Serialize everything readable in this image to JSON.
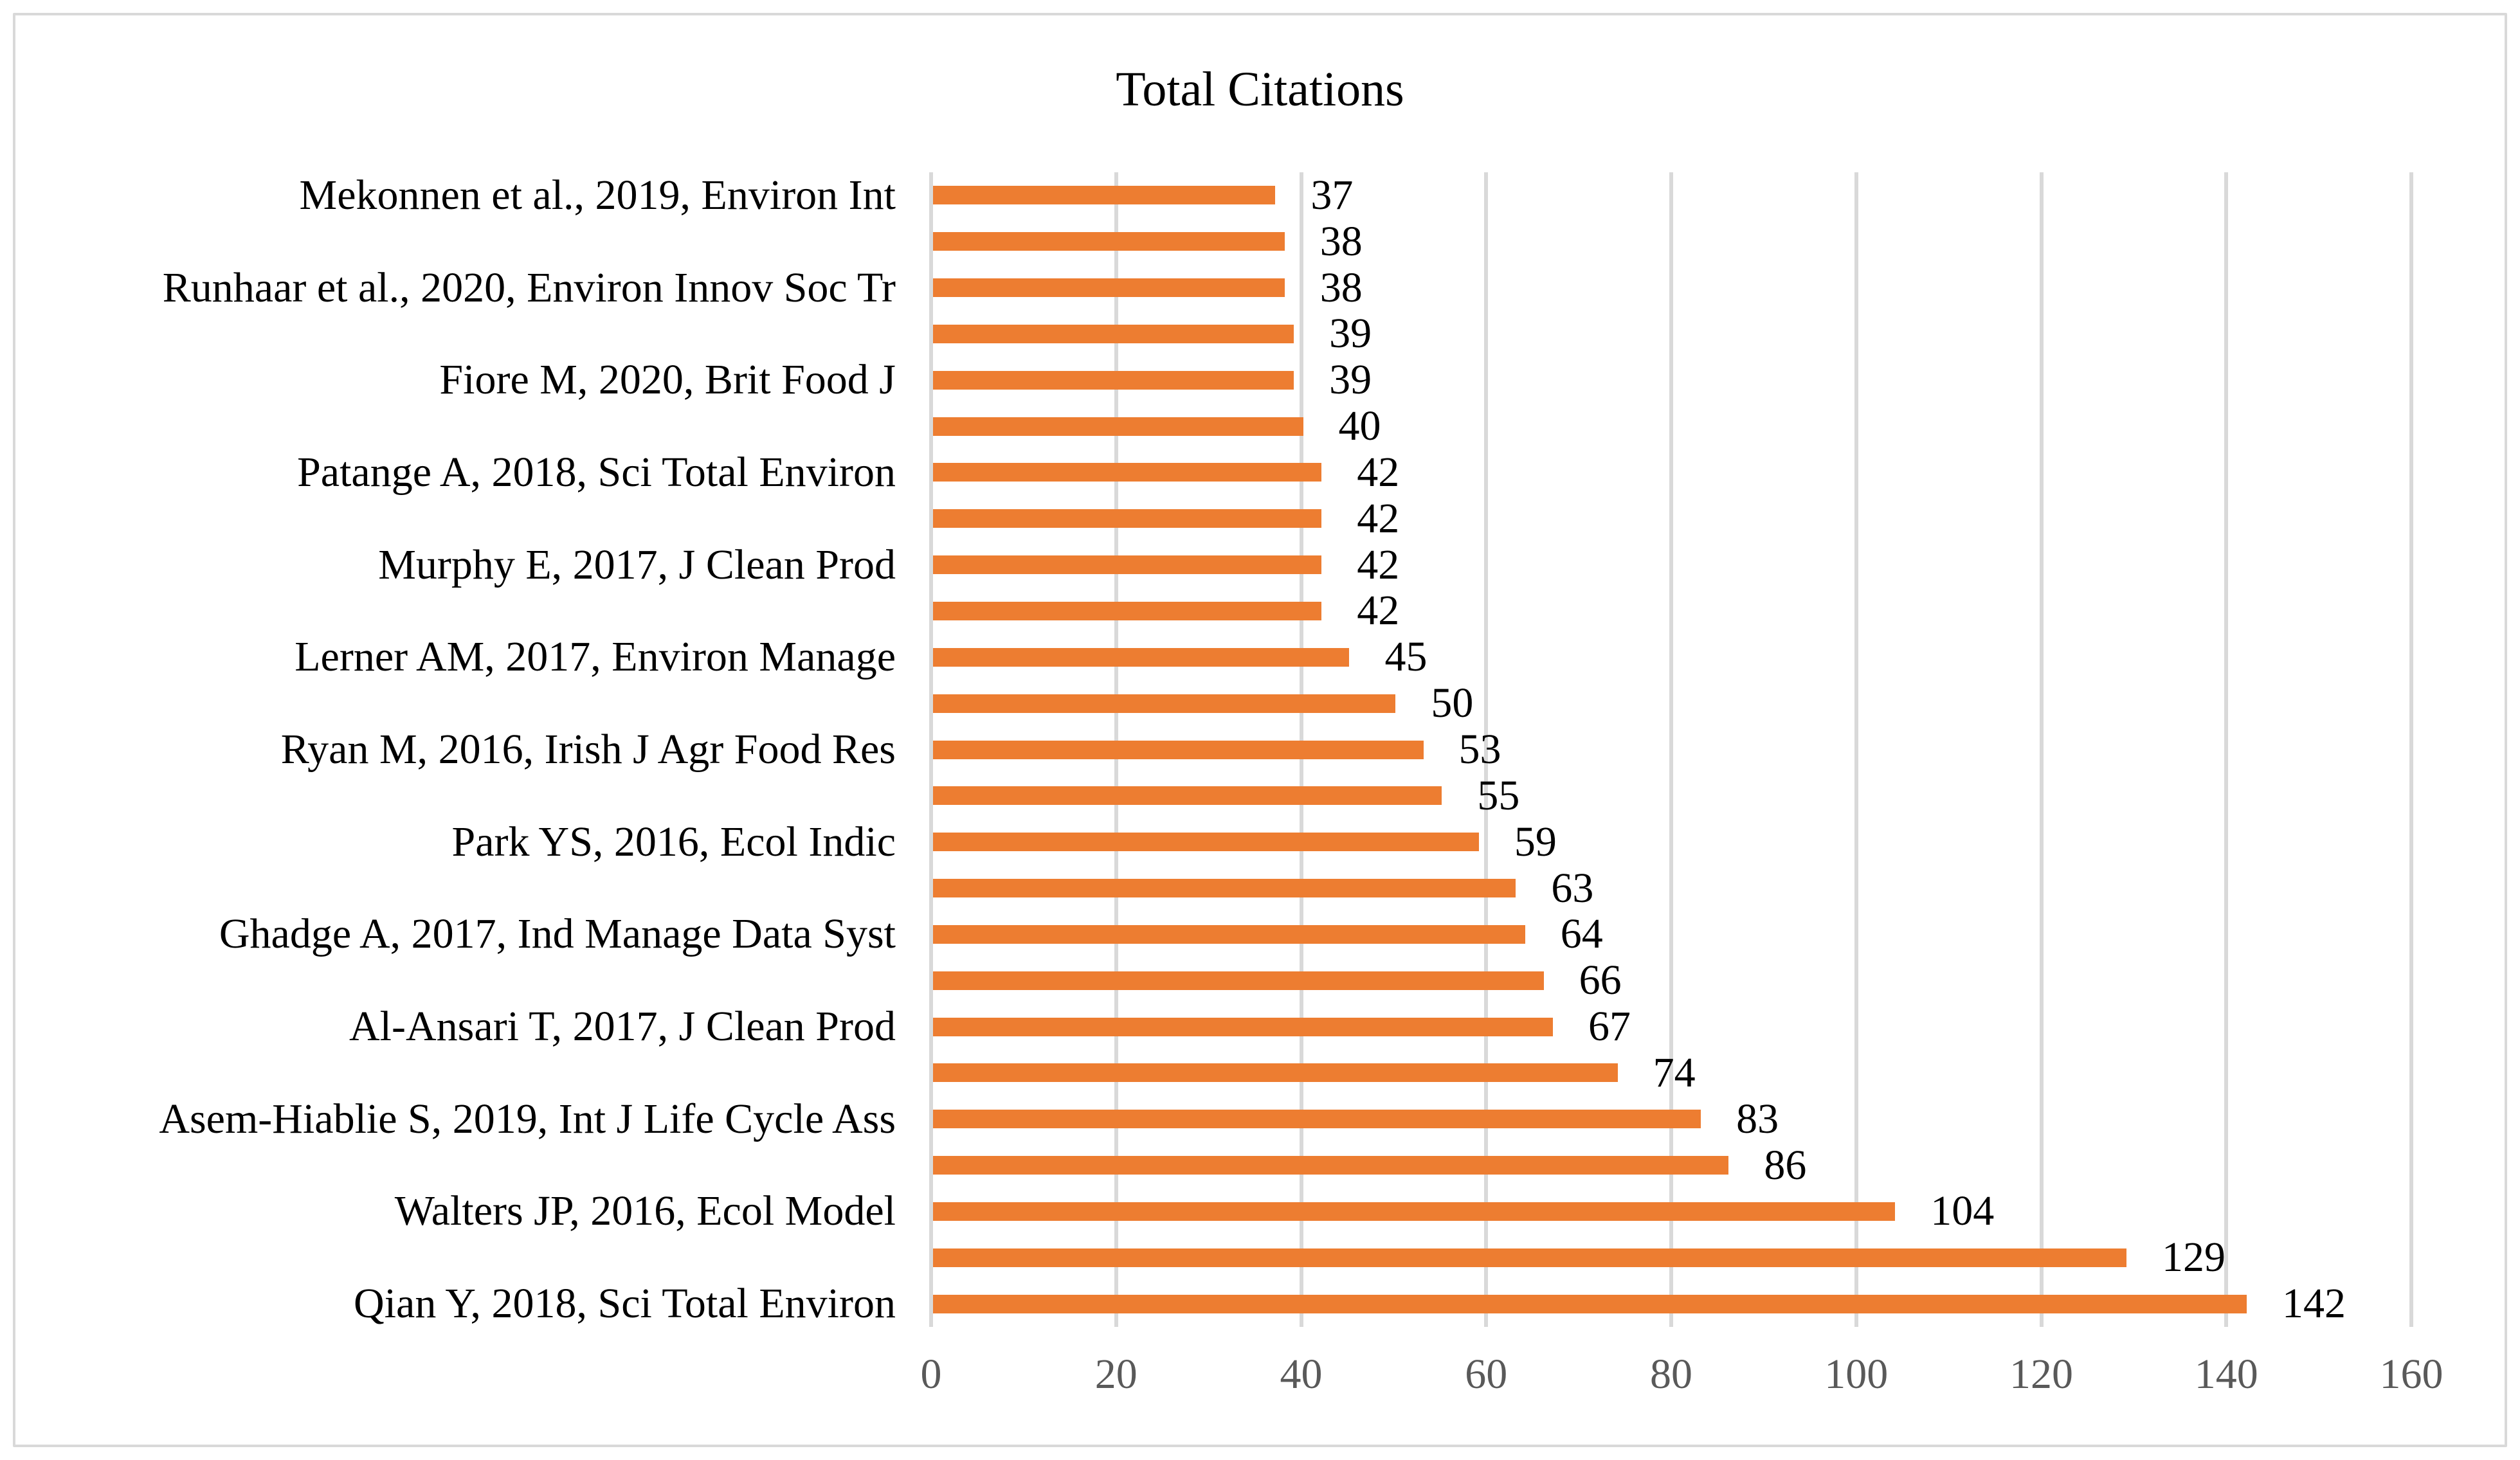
{
  "chart_data": {
    "type": "bar",
    "orientation": "horizontal",
    "title": "Total Citations",
    "x_axis": {
      "min": 0,
      "max": 160,
      "step": 20,
      "tick_labels": [
        "0",
        "20",
        "40",
        "60",
        "80",
        "100",
        "120",
        "140",
        "160"
      ]
    },
    "grid": true,
    "legend": "none",
    "value_labels_visible": true,
    "category_axis_note": "only every second bar carries a visible category label",
    "rows": [
      {
        "label": "Mekonnen et al., 2019, Environ Int",
        "value": 37
      },
      {
        "label": "",
        "value": 38
      },
      {
        "label": "Runhaar et al., 2020, Environ Innov Soc Tr",
        "value": 38
      },
      {
        "label": "",
        "value": 39
      },
      {
        "label": "Fiore M, 2020, Brit Food J",
        "value": 39
      },
      {
        "label": "",
        "value": 40
      },
      {
        "label": "Patange A, 2018, Sci Total Environ",
        "value": 42
      },
      {
        "label": "",
        "value": 42
      },
      {
        "label": "Murphy E, 2017, J Clean Prod",
        "value": 42
      },
      {
        "label": "",
        "value": 42
      },
      {
        "label": "Lerner AM, 2017, Environ Manage",
        "value": 45
      },
      {
        "label": "",
        "value": 50
      },
      {
        "label": "Ryan M, 2016, Irish J Agr Food Res",
        "value": 53
      },
      {
        "label": "",
        "value": 55
      },
      {
        "label": "Park YS, 2016, Ecol Indic",
        "value": 59
      },
      {
        "label": "",
        "value": 63
      },
      {
        "label": "Ghadge A, 2017, Ind Manage Data Syst",
        "value": 64
      },
      {
        "label": "",
        "value": 66
      },
      {
        "label": "Al-Ansari T, 2017, J Clean Prod",
        "value": 67
      },
      {
        "label": "",
        "value": 74
      },
      {
        "label": "Asem-Hiablie S, 2019, Int J Life Cycle Ass",
        "value": 83
      },
      {
        "label": "",
        "value": 86
      },
      {
        "label": "Walters JP, 2016, Ecol Model",
        "value": 104
      },
      {
        "label": "",
        "value": 129
      },
      {
        "label": "Qian Y, 2018, Sci Total Environ",
        "value": 142
      }
    ],
    "colors": {
      "bar_fill": "#ED7D31",
      "gridline": "#D9D9D9",
      "axis_tick_text": "#595959",
      "text": "#000000",
      "background": "#FFFFFF",
      "frame_border": "#D9D9D9"
    }
  }
}
